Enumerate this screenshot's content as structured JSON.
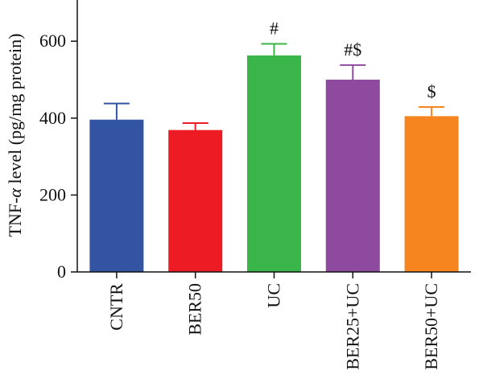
{
  "chart_data": {
    "type": "bar",
    "ylabel_prefix": "TNF-",
    "ylabel_greek": "α",
    "ylabel_suffix": " level (pg/mg protein)",
    "ylim": [
      0,
      700
    ],
    "yticks": [
      0,
      200,
      400,
      600
    ],
    "categories": [
      "CNTR",
      "BER50",
      "UC",
      "BER25+UC",
      "BER50+UC"
    ],
    "values": [
      396,
      369,
      563,
      500,
      405
    ],
    "errors": [
      42,
      18,
      30,
      38,
      24
    ],
    "annotations": [
      "",
      "",
      "#",
      "#$",
      "$"
    ],
    "colors": [
      "#3353A3",
      "#ED1C24",
      "#39B54A",
      "#8E4A9E",
      "#F7851F"
    ],
    "grid": false
  }
}
